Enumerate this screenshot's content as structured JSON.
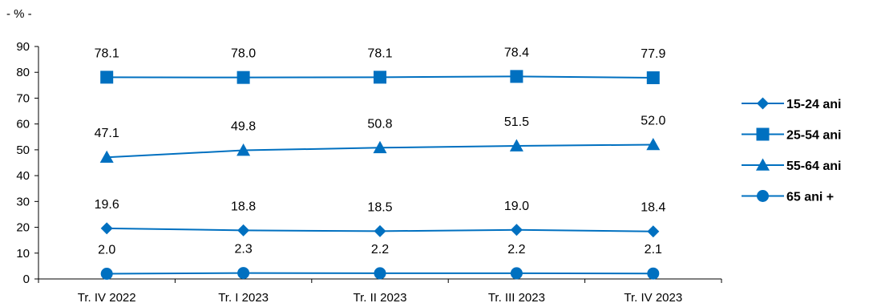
{
  "chart_data": {
    "type": "line",
    "unit_label": "- % -",
    "categories": [
      "Tr. IV 2022",
      "Tr. I 2023",
      "Tr. II 2023",
      "Tr. III 2023",
      "Tr. IV 2023"
    ],
    "ylim": [
      0,
      90
    ],
    "yticks": [
      0,
      10,
      20,
      30,
      40,
      50,
      60,
      70,
      80,
      90
    ],
    "grid": false,
    "legend_position": "right",
    "line_color": "#0070c0",
    "series": [
      {
        "name": "15-24 ani",
        "marker": "diamond",
        "values": [
          19.6,
          18.8,
          18.5,
          19.0,
          18.4
        ],
        "labels": [
          "19.6",
          "18.8",
          "18.5",
          "19.0",
          "18.4"
        ]
      },
      {
        "name": "25-54 ani",
        "marker": "square",
        "values": [
          78.1,
          78.0,
          78.1,
          78.4,
          77.9
        ],
        "labels": [
          "78.1",
          "78.0",
          "78.1",
          "78.4",
          "77.9"
        ]
      },
      {
        "name": "55-64 ani",
        "marker": "triangle",
        "values": [
          47.1,
          49.8,
          50.8,
          51.5,
          52.0
        ],
        "labels": [
          "47.1",
          "49.8",
          "50.8",
          "51.5",
          "52.0"
        ]
      },
      {
        "name": "65 ani +",
        "marker": "circle",
        "values": [
          2.0,
          2.3,
          2.2,
          2.2,
          2.1
        ],
        "labels": [
          "2.0",
          "2.3",
          "2.2",
          "2.2",
          "2.1"
        ]
      }
    ]
  }
}
